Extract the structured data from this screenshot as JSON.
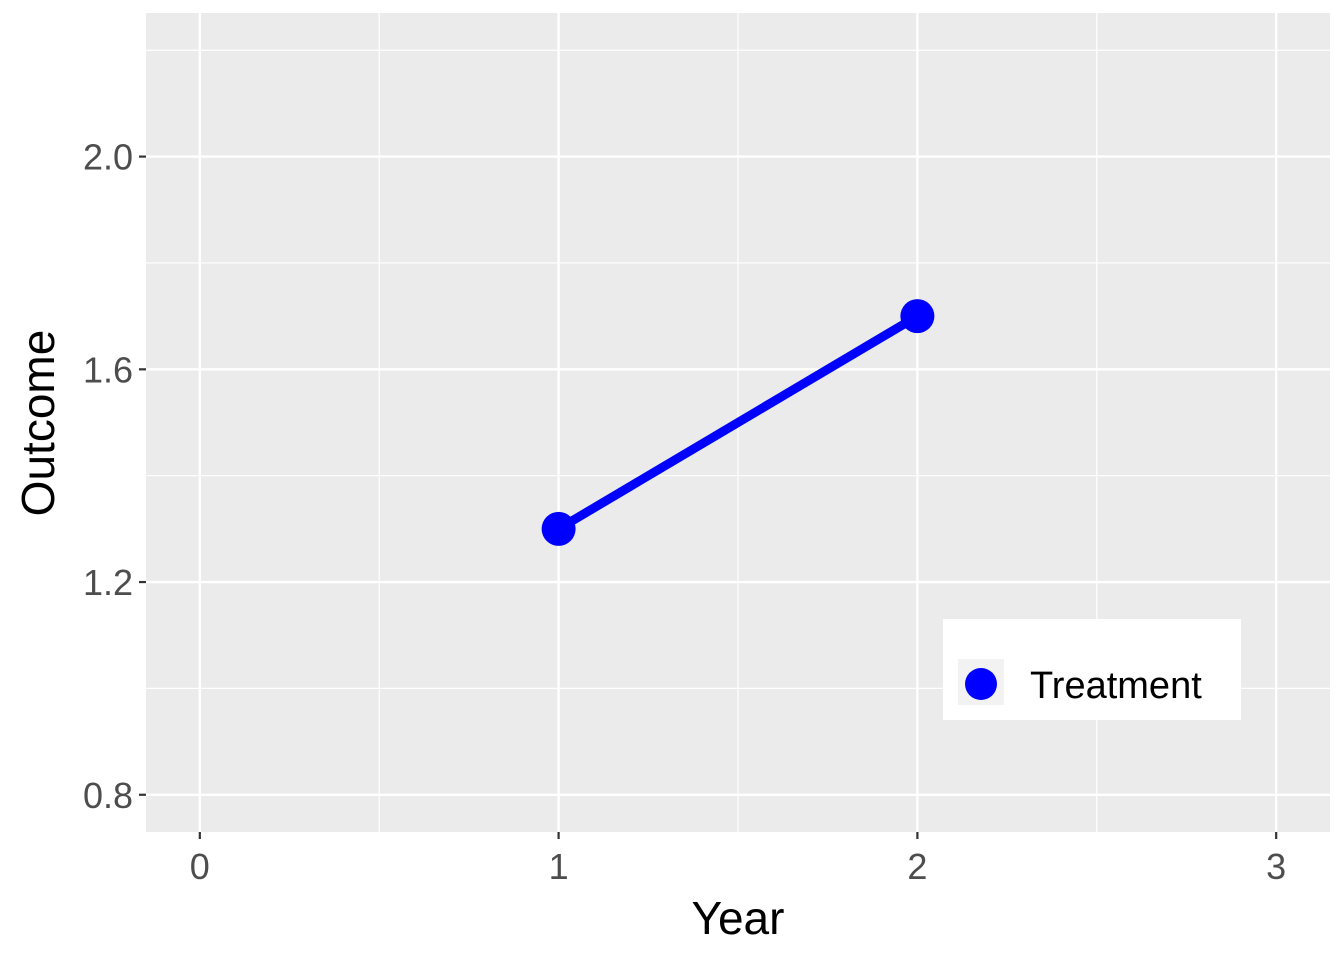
{
  "chart_data": {
    "type": "line",
    "xlabel": "Year",
    "ylabel": "Outcome",
    "xlim": [
      -0.15,
      3.15
    ],
    "ylim": [
      0.73,
      2.27
    ],
    "x_ticks": [
      0,
      1,
      2,
      3
    ],
    "x_tick_labels": [
      "0",
      "1",
      "2",
      "3"
    ],
    "y_ticks": [
      0.8,
      1.2,
      1.6,
      2.0
    ],
    "y_tick_labels": [
      "0.8",
      "1.2",
      "1.6",
      "2.0"
    ],
    "grid": true,
    "legend_position": "bottom-right",
    "series": [
      {
        "name": "Treatment",
        "color": "#0000ff",
        "x": [
          1,
          2
        ],
        "y": [
          1.3,
          1.7
        ]
      }
    ]
  }
}
